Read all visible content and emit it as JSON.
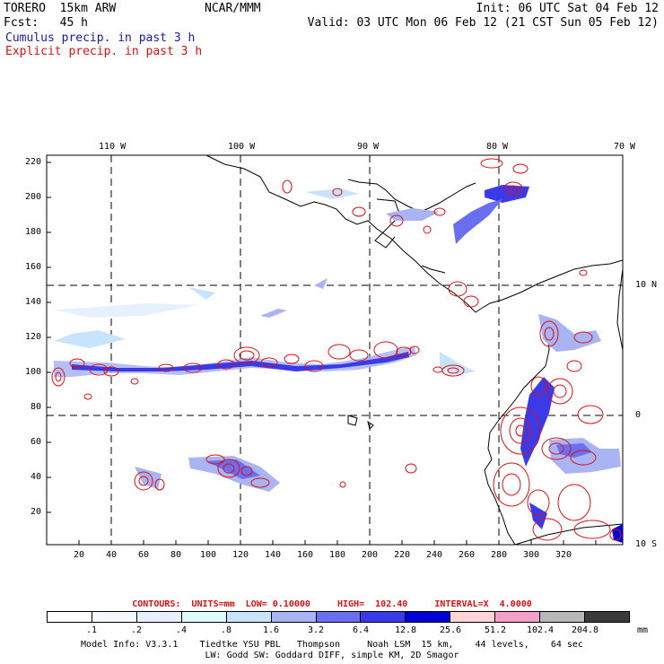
{
  "header": {
    "model": "TORERO  15km ARW",
    "org": "NCAR/MMM",
    "init": "Init: 06 UTC Sat 04 Feb 12",
    "fcst": "Fcst:   45 h",
    "valid": "Valid: 03 UTC Mon 06 Feb 12 (21 CST Sun 05 Feb 12)",
    "cumulus_label": "Cumulus precip. in past 3 h",
    "explicit_label": "Explicit precip. in past 3 h"
  },
  "colors": {
    "cumulus": "#1a1aa8",
    "explicit": "#dd1111",
    "land": "#000000",
    "background": "#ffffff"
  },
  "map": {
    "lon_labels": [
      "110 W",
      "100 W",
      "90 W",
      "80 W",
      "70 W"
    ],
    "lat_labels": [
      "10 N",
      "0",
      "10 S"
    ],
    "y_ticks": [
      "220",
      "200",
      "180",
      "160",
      "140",
      "120",
      "100",
      "80",
      "60",
      "40",
      "20"
    ],
    "x_ticks": [
      "20",
      "40",
      "60",
      "80",
      "100",
      "120",
      "140",
      "160",
      "180",
      "200",
      "220",
      "240",
      "260",
      "280",
      "300",
      "320"
    ],
    "gridlines": "dashed"
  },
  "contours_text": "CONTOURS:  UNITS=mm  LOW= 0.10000     HIGH=  102.40     INTERVAL=X  4.0000",
  "colorbar": {
    "labels": [
      ".1",
      ".2",
      ".4",
      ".8",
      "1.6",
      "3.2",
      "6.4",
      "12.8",
      "25.6",
      "51.2",
      "102.4",
      "204.8"
    ],
    "unit": "mm",
    "colors": [
      "#ffffff",
      "#f4f8ff",
      "#e6f0ff",
      "#ddfcfb",
      "#c8e4fc",
      "#a8b4f4",
      "#6a6ef0",
      "#3a3ae8",
      "#0000d6",
      "#fcd6d6",
      "#f4a0c8",
      "#b8b8b8",
      "#3a3a3a",
      "#d8a8f4"
    ]
  },
  "footer": {
    "line1": "Model Info: V3.3.1    Tiedtke YSU PBL   Thompson     Noah LSM  15 km,    44 levels,    64 sec",
    "line2": "LW: Godd SW: Goddard DIFF, simple KM, 2D Smagor"
  }
}
